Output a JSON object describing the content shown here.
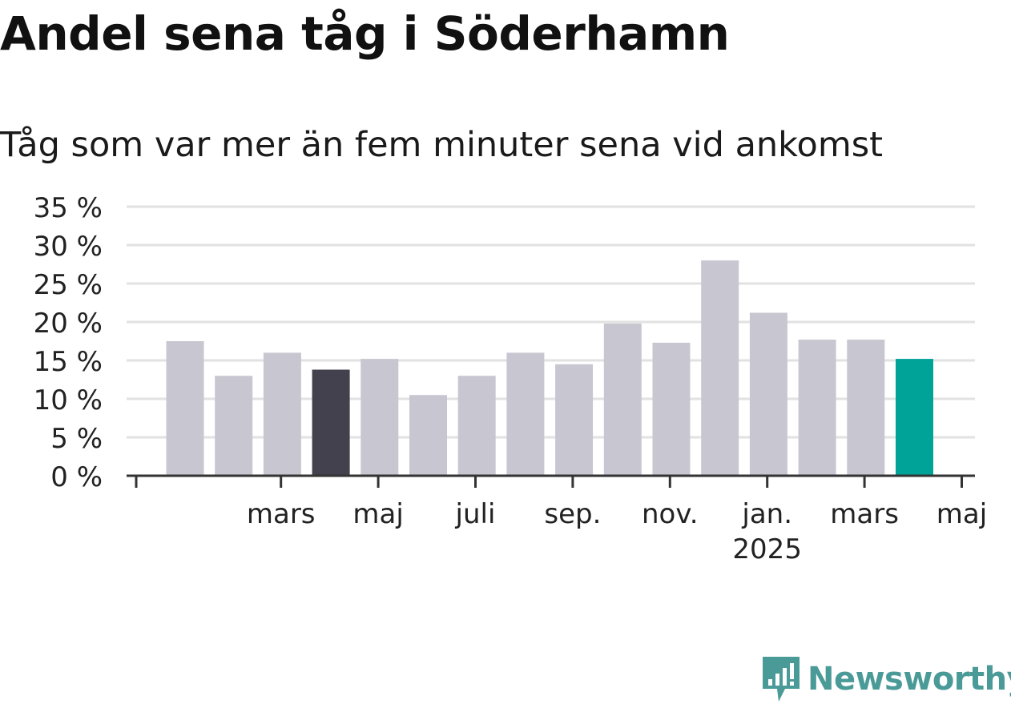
{
  "title": "Andel sena tåg i Söderhamn",
  "subtitle": "Tåg som var mer än fem minuter sena vid ankomst",
  "logo_text": "Newsworthy",
  "colors": {
    "bar_default": "#c8c7d1",
    "bar_highlight_dark": "#42414d",
    "bar_highlight_accent": "#00a398",
    "grid": "#e2e2e2",
    "axis": "#333333",
    "text": "#222222",
    "logo": "#4a9a98"
  },
  "chart_data": {
    "type": "bar",
    "title": "Andel sena tåg i Söderhamn",
    "subtitle": "Tåg som var mer än fem minuter sena vid ankomst",
    "xlabel": "",
    "ylabel": "",
    "ylim": [
      0,
      35
    ],
    "yticks": [
      0,
      5,
      10,
      15,
      20,
      25,
      30,
      35
    ],
    "ytick_labels": [
      "0 %",
      "5 %",
      "10 %",
      "15 %",
      "20 %",
      "25 %",
      "30 %",
      "35 %"
    ],
    "grid": true,
    "categories": [
      "2024-02",
      "2024-03",
      "2024-04",
      "2024-05",
      "2024-06",
      "2024-07",
      "2024-08",
      "2024-09",
      "2024-10",
      "2024-11",
      "2024-12",
      "2025-01",
      "2025-02",
      "2025-03",
      "2025-04",
      "2025-05"
    ],
    "values": [
      17.5,
      13.0,
      16.0,
      13.8,
      15.2,
      10.5,
      13.0,
      16.0,
      14.5,
      19.8,
      17.3,
      28.0,
      21.2,
      17.7,
      17.7,
      15.2
    ],
    "highlight": {
      "2024-05": "dark",
      "2025-05": "accent"
    },
    "xticks": [
      {
        "at": "2024-01",
        "label": "",
        "sublabel": ""
      },
      {
        "at": "2024-03",
        "label": "mars",
        "sublabel": ""
      },
      {
        "at": "2024-05",
        "label": "maj",
        "sublabel": ""
      },
      {
        "at": "2024-07",
        "label": "juli",
        "sublabel": ""
      },
      {
        "at": "2024-09",
        "label": "sep.",
        "sublabel": ""
      },
      {
        "at": "2024-11",
        "label": "nov.",
        "sublabel": ""
      },
      {
        "at": "2025-01",
        "label": "jan.",
        "sublabel": "2025"
      },
      {
        "at": "2025-03",
        "label": "mars",
        "sublabel": ""
      },
      {
        "at": "2025-05",
        "label": "maj",
        "sublabel": ""
      }
    ]
  }
}
